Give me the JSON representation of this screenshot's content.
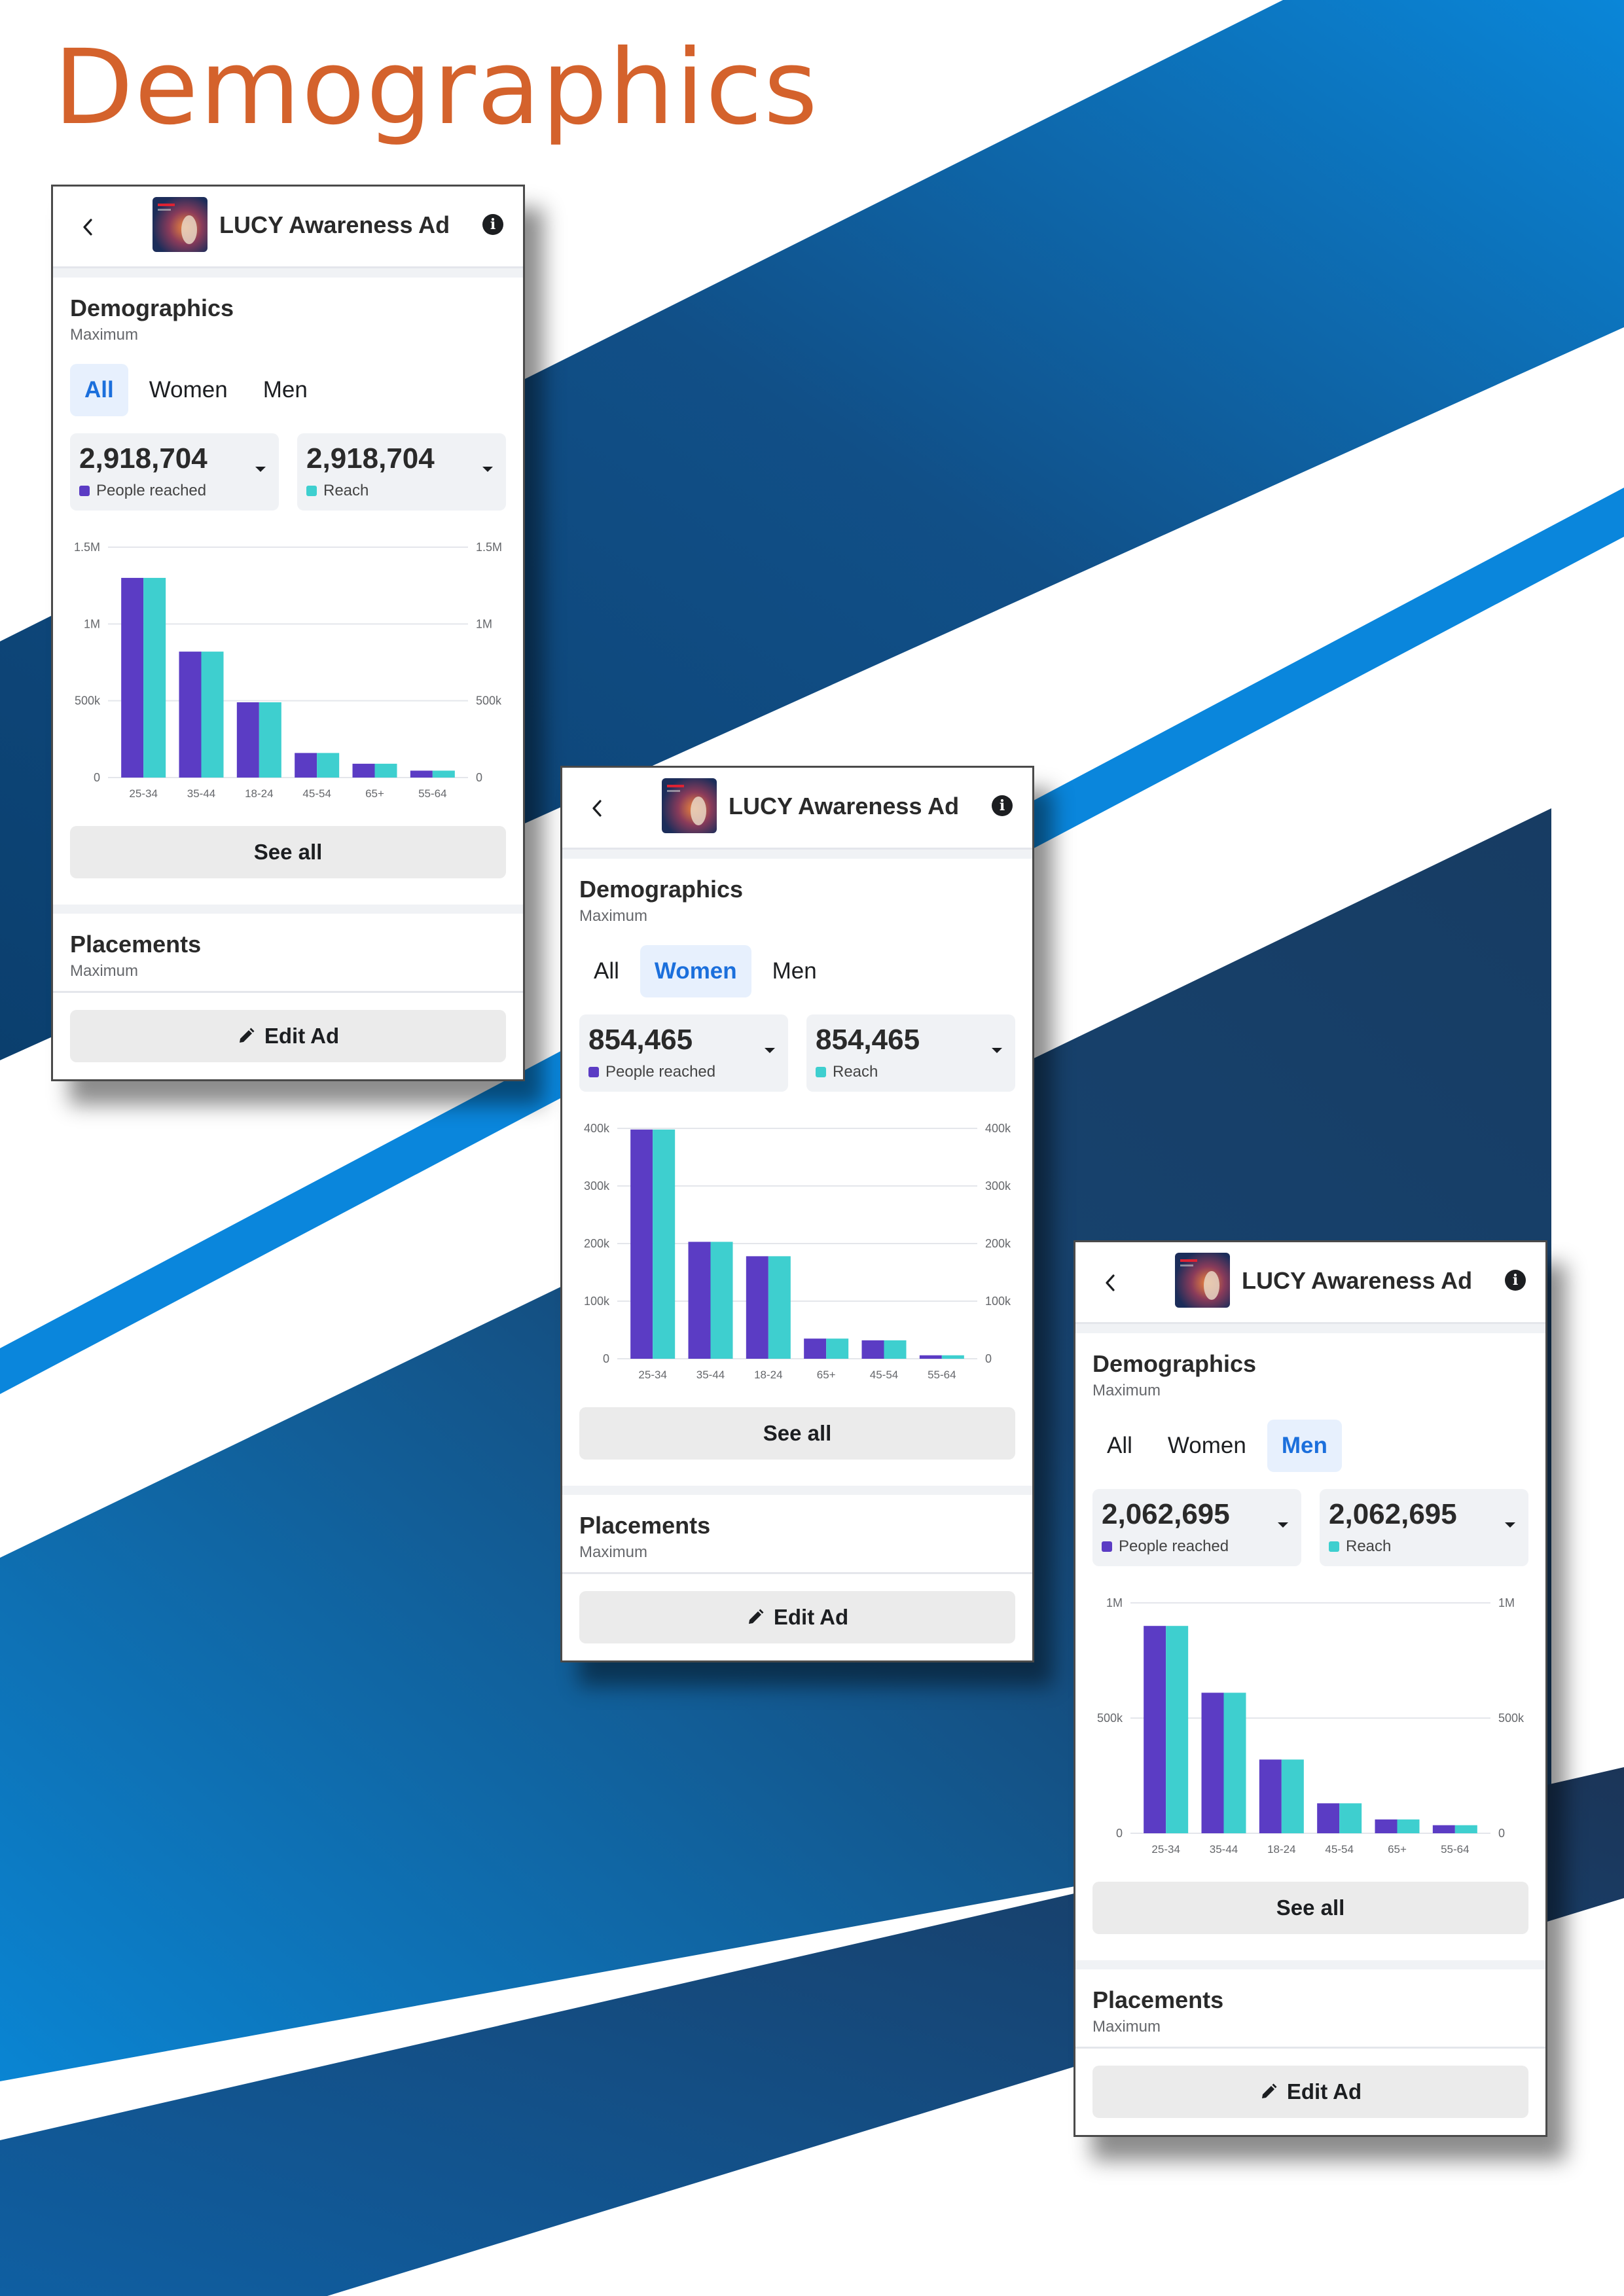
{
  "page": {
    "title": "Demographics"
  },
  "colors": {
    "accent_title": "#d4622c",
    "people_reached": "#5b3cc4",
    "reach": "#3ecfcf",
    "active_tab": "#1b6fdc"
  },
  "cards": [
    {
      "key": "all",
      "header": {
        "title": "LUCY Awareness Ad",
        "back_icon": "chevron-left-icon",
        "info_icon": "info-icon"
      },
      "demographics": {
        "title": "Demographics",
        "subtitle": "Maximum"
      },
      "tabs": [
        {
          "label": "All",
          "active": true
        },
        {
          "label": "Women",
          "active": false
        },
        {
          "label": "Men",
          "active": false
        }
      ],
      "metrics": [
        {
          "value": "2,918,704",
          "label": "People reached"
        },
        {
          "value": "2,918,704",
          "label": "Reach"
        }
      ],
      "see_all": "See all",
      "placements": {
        "title": "Placements",
        "subtitle": "Maximum"
      },
      "edit_ad": "Edit Ad"
    },
    {
      "key": "women",
      "header": {
        "title": "LUCY Awareness Ad",
        "back_icon": "chevron-left-icon",
        "info_icon": "info-icon"
      },
      "demographics": {
        "title": "Demographics",
        "subtitle": "Maximum"
      },
      "tabs": [
        {
          "label": "All",
          "active": false
        },
        {
          "label": "Women",
          "active": true
        },
        {
          "label": "Men",
          "active": false
        }
      ],
      "metrics": [
        {
          "value": "854,465",
          "label": "People reached"
        },
        {
          "value": "854,465",
          "label": "Reach"
        }
      ],
      "see_all": "See all",
      "placements": {
        "title": "Placements",
        "subtitle": "Maximum"
      },
      "edit_ad": "Edit Ad"
    },
    {
      "key": "men",
      "header": {
        "title": "LUCY Awareness Ad",
        "back_icon": "chevron-left-icon",
        "info_icon": "info-icon"
      },
      "demographics": {
        "title": "Demographics",
        "subtitle": "Maximum"
      },
      "tabs": [
        {
          "label": "All",
          "active": false
        },
        {
          "label": "Women",
          "active": false
        },
        {
          "label": "Men",
          "active": true
        }
      ],
      "metrics": [
        {
          "value": "2,062,695",
          "label": "People reached"
        },
        {
          "value": "2,062,695",
          "label": "Reach"
        }
      ],
      "see_all": "See all",
      "placements": {
        "title": "Placements",
        "subtitle": "Maximum"
      },
      "edit_ad": "Edit Ad"
    }
  ],
  "chart_data": [
    {
      "type": "bar",
      "title": "",
      "categories": [
        "25-34",
        "35-44",
        "18-24",
        "45-54",
        "65+",
        "55-64"
      ],
      "series": [
        {
          "name": "People reached",
          "values": [
            1300000,
            820000,
            490000,
            160000,
            90000,
            45000
          ]
        },
        {
          "name": "Reach",
          "values": [
            1300000,
            820000,
            490000,
            160000,
            90000,
            45000
          ]
        }
      ],
      "ylim": [
        0,
        1500000
      ],
      "yticks": [
        "0",
        "500k",
        "1M",
        "1.5M"
      ],
      "ytick_values": [
        0,
        500000,
        1000000,
        1500000
      ],
      "xlabel": "",
      "ylabel": "",
      "grid": true,
      "legend": "none"
    },
    {
      "type": "bar",
      "title": "",
      "categories": [
        "25-34",
        "35-44",
        "18-24",
        "65+",
        "45-54",
        "55-64"
      ],
      "series": [
        {
          "name": "People reached",
          "values": [
            398000,
            203000,
            178000,
            35000,
            32000,
            6000
          ]
        },
        {
          "name": "Reach",
          "values": [
            398000,
            203000,
            178000,
            35000,
            32000,
            6000
          ]
        }
      ],
      "ylim": [
        0,
        400000
      ],
      "yticks": [
        "0",
        "100k",
        "200k",
        "300k",
        "400k"
      ],
      "ytick_values": [
        0,
        100000,
        200000,
        300000,
        400000
      ],
      "xlabel": "",
      "ylabel": "",
      "grid": true,
      "legend": "none"
    },
    {
      "type": "bar",
      "title": "",
      "categories": [
        "25-34",
        "35-44",
        "18-24",
        "45-54",
        "65+",
        "55-64"
      ],
      "series": [
        {
          "name": "People reached",
          "values": [
            900000,
            610000,
            320000,
            130000,
            60000,
            35000
          ]
        },
        {
          "name": "Reach",
          "values": [
            900000,
            610000,
            320000,
            130000,
            60000,
            35000
          ]
        }
      ],
      "ylim": [
        0,
        1000000
      ],
      "yticks": [
        "0",
        "500k",
        "1M"
      ],
      "ytick_values": [
        0,
        500000,
        1000000
      ],
      "xlabel": "",
      "ylabel": "",
      "grid": true,
      "legend": "none"
    }
  ]
}
